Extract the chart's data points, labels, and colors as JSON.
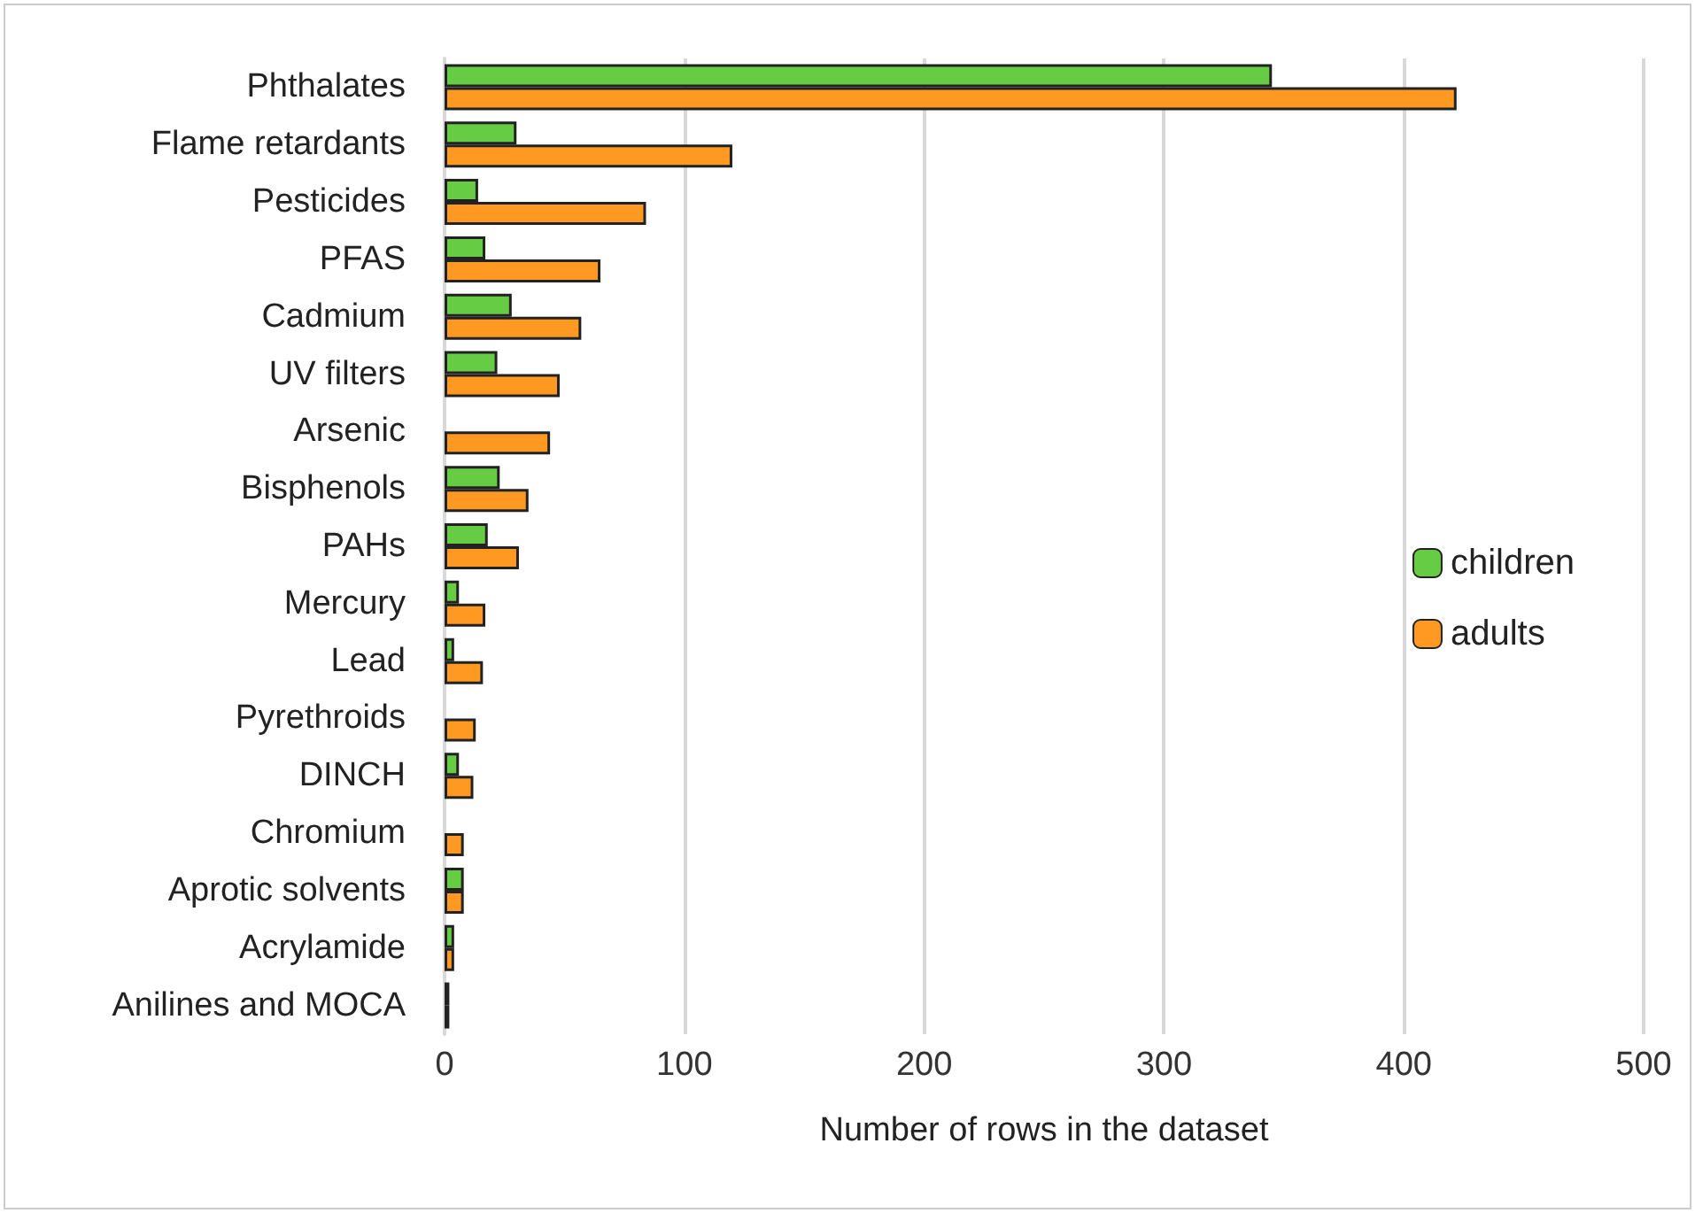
{
  "chart_data": {
    "type": "bar",
    "orientation": "horizontal",
    "xlabel": "Number of rows in the dataset",
    "categories": [
      "Phthalates",
      "Flame retardants",
      "Pesticides",
      "PFAS",
      "Cadmium",
      "UV filters",
      "Arsenic",
      "Bisphenols",
      "PAHs",
      "Mercury",
      "Lead",
      "Pyrethroids",
      "DINCH",
      "Chromium",
      "Aprotic solvents",
      "Acrylamide",
      "Anilines and MOCA"
    ],
    "series": [
      {
        "name": "children",
        "color": "#66cc44",
        "values": [
          345,
          30,
          14,
          17,
          28,
          22,
          null,
          23,
          18,
          6,
          4,
          null,
          6,
          null,
          8,
          4,
          2
        ]
      },
      {
        "name": "adults",
        "color": "#ff9922",
        "values": [
          422,
          120,
          84,
          65,
          57,
          48,
          44,
          35,
          31,
          17,
          16,
          13,
          12,
          8,
          8,
          4,
          2
        ]
      }
    ],
    "xlim": [
      0,
      500
    ],
    "xticks": [
      0,
      100,
      200,
      300,
      400,
      500
    ],
    "grid": "x",
    "legend": "right"
  }
}
